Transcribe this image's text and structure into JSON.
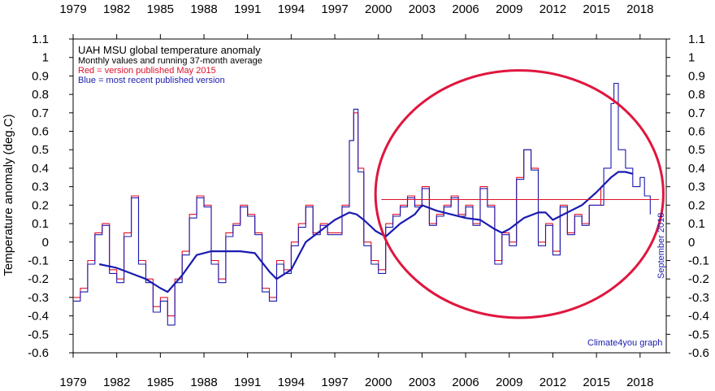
{
  "chart_data": {
    "type": "line",
    "title": "UAH MSU global temperature anomaly",
    "subtitle": "Monthly values and running 37-month average",
    "legend": [
      {
        "text": "Red = version published May 2015",
        "color": "#e0102a"
      },
      {
        "text": "Blue = most recent published version",
        "color": "#1b1bb0"
      }
    ],
    "ylabel": "Temperature anomaly (deg.C)",
    "right_note": "September 2018",
    "credit": "Climate4you graph",
    "xlim": [
      1979,
      2019.8
    ],
    "ylim": [
      -0.6,
      1.1
    ],
    "x_ticks": [
      "1979",
      "1982",
      "1985",
      "1988",
      "1991",
      "1994",
      "1997",
      "2000",
      "2003",
      "2006",
      "2009",
      "2012",
      "2015",
      "2018"
    ],
    "y_ticks": [
      "1.1",
      "1",
      "0.9",
      "0.8",
      "0.7",
      "0.6",
      "0.5",
      "0.4",
      "0.3",
      "0.2",
      "0.1",
      "0",
      "-0.1",
      "-0.2",
      "-0.3",
      "-0.4",
      "-0.5",
      "-0.6"
    ],
    "colors": {
      "monthly_blue": "#1b1bb0",
      "monthly_red": "#e0102a",
      "average": "#1b1bb0",
      "highlight_ellipse": "#e0163e",
      "reference_line": "#e0102a"
    },
    "reference_line": {
      "y": 0.23,
      "x_start": 2000.2,
      "x_end": 2019.3
    },
    "highlight_ellipse": {
      "x_center": 2009.7,
      "y_center": 0.26,
      "x_half_width": 9.9,
      "y_half_height": 0.67
    },
    "series": [
      {
        "name": "Red = version published May 2015",
        "color": "#e0102a",
        "x": [
          1979.0,
          1979.5,
          1980.0,
          1980.5,
          1981.0,
          1981.5,
          1982.0,
          1982.5,
          1983.0,
          1983.5,
          1984.0,
          1984.5,
          1985.0,
          1985.5,
          1986.0,
          1986.5,
          1987.0,
          1987.5,
          1988.0,
          1988.5,
          1989.0,
          1989.5,
          1990.0,
          1990.5,
          1991.0,
          1991.5,
          1992.0,
          1992.5,
          1993.0,
          1993.5,
          1994.0,
          1994.5,
          1995.0,
          1995.5,
          1996.0,
          1996.5,
          1997.0,
          1997.5,
          1998.0,
          1998.3,
          1998.6,
          1999.0,
          1999.5,
          2000.0,
          2000.5,
          2001.0,
          2001.5,
          2002.0,
          2002.5,
          2003.0,
          2003.5,
          2004.0,
          2004.5,
          2005.0,
          2005.5,
          2006.0,
          2006.5,
          2007.0,
          2007.5,
          2008.0,
          2008.5,
          2009.0,
          2009.5,
          2010.0,
          2010.5,
          2011.0,
          2011.5,
          2012.0,
          2012.5,
          2013.0,
          2013.5,
          2014.0,
          2014.5,
          2015.0,
          2015.3
        ],
        "values": [
          -0.3,
          -0.25,
          -0.1,
          0.05,
          0.1,
          -0.15,
          -0.2,
          0.05,
          0.25,
          -0.1,
          -0.2,
          -0.35,
          -0.3,
          -0.4,
          -0.2,
          -0.05,
          0.15,
          0.25,
          0.2,
          -0.1,
          -0.2,
          0.05,
          0.1,
          0.2,
          0.15,
          0.05,
          -0.25,
          -0.3,
          -0.1,
          -0.15,
          0.0,
          0.1,
          0.2,
          0.05,
          0.1,
          0.05,
          0.05,
          0.2,
          0.55,
          0.7,
          0.4,
          0.0,
          -0.1,
          -0.15,
          0.1,
          0.15,
          0.2,
          0.25,
          0.2,
          0.3,
          0.1,
          0.15,
          0.2,
          0.25,
          0.15,
          0.2,
          0.1,
          0.3,
          0.2,
          -0.1,
          0.05,
          0.0,
          0.35,
          0.5,
          0.4,
          0.0,
          0.1,
          -0.05,
          0.2,
          0.05,
          0.15,
          0.1,
          0.2,
          0.2,
          0.3
        ]
      },
      {
        "name": "Blue = most recent published version",
        "color": "#1b1bb0",
        "x": [
          1979.0,
          1979.5,
          1980.0,
          1980.5,
          1981.0,
          1981.5,
          1982.0,
          1982.5,
          1983.0,
          1983.5,
          1984.0,
          1984.5,
          1985.0,
          1985.5,
          1986.0,
          1986.5,
          1987.0,
          1987.5,
          1988.0,
          1988.5,
          1989.0,
          1989.5,
          1990.0,
          1990.5,
          1991.0,
          1991.5,
          1992.0,
          1992.5,
          1993.0,
          1993.5,
          1994.0,
          1994.5,
          1995.0,
          1995.5,
          1996.0,
          1996.5,
          1997.0,
          1997.5,
          1998.0,
          1998.3,
          1998.6,
          1999.0,
          1999.5,
          2000.0,
          2000.5,
          2001.0,
          2001.5,
          2002.0,
          2002.5,
          2003.0,
          2003.5,
          2004.0,
          2004.5,
          2005.0,
          2005.5,
          2006.0,
          2006.5,
          2007.0,
          2007.5,
          2008.0,
          2008.5,
          2009.0,
          2009.5,
          2010.0,
          2010.5,
          2011.0,
          2011.5,
          2012.0,
          2012.5,
          2013.0,
          2013.5,
          2014.0,
          2014.5,
          2015.0,
          2015.5,
          2016.0,
          2016.2,
          2016.5,
          2017.0,
          2017.5,
          2018.0,
          2018.3,
          2018.7
        ],
        "values": [
          -0.32,
          -0.27,
          -0.12,
          0.04,
          0.09,
          -0.17,
          -0.22,
          0.03,
          0.24,
          -0.12,
          -0.22,
          -0.38,
          -0.32,
          -0.45,
          -0.22,
          -0.07,
          0.13,
          0.24,
          0.19,
          -0.12,
          -0.22,
          0.03,
          0.09,
          0.19,
          0.14,
          0.04,
          -0.27,
          -0.32,
          -0.12,
          -0.17,
          -0.02,
          0.08,
          0.19,
          0.04,
          0.09,
          0.04,
          0.04,
          0.19,
          0.55,
          0.72,
          0.38,
          -0.02,
          -0.12,
          -0.17,
          0.08,
          0.14,
          0.19,
          0.24,
          0.19,
          0.29,
          0.09,
          0.14,
          0.19,
          0.24,
          0.14,
          0.19,
          0.09,
          0.29,
          0.19,
          -0.12,
          0.04,
          -0.02,
          0.34,
          0.5,
          0.39,
          -0.02,
          0.09,
          -0.07,
          0.19,
          0.04,
          0.14,
          0.09,
          0.2,
          0.2,
          0.4,
          0.75,
          0.86,
          0.5,
          0.4,
          0.3,
          0.35,
          0.25,
          0.15
        ]
      },
      {
        "name": "",
        "color": "#1b1bb0",
        "x": [
          1980.8,
          1982.0,
          1983.0,
          1984.0,
          1985.0,
          1985.5,
          1986.5,
          1987.5,
          1988.5,
          1989.5,
          1990.5,
          1991.5,
          1992.5,
          1993.0,
          1994.0,
          1995.0,
          1996.0,
          1997.0,
          1998.0,
          1998.5,
          1999.0,
          1999.8,
          2000.5,
          2001.5,
          2002.5,
          2003.0,
          2004.0,
          2005.0,
          2006.0,
          2007.0,
          2008.0,
          2008.5,
          2009.0,
          2009.5,
          2010.0,
          2011.0,
          2011.5,
          2012.0,
          2013.0,
          2014.0,
          2015.0,
          2016.0,
          2016.5,
          2017.0,
          2017.5
        ],
        "values": [
          -0.12,
          -0.14,
          -0.17,
          -0.2,
          -0.25,
          -0.27,
          -0.18,
          -0.07,
          -0.05,
          -0.05,
          -0.05,
          -0.06,
          -0.16,
          -0.2,
          -0.15,
          0.0,
          0.06,
          0.12,
          0.16,
          0.15,
          0.12,
          0.06,
          0.03,
          0.1,
          0.15,
          0.2,
          0.17,
          0.15,
          0.13,
          0.12,
          0.07,
          0.05,
          0.07,
          0.1,
          0.13,
          0.16,
          0.16,
          0.12,
          0.16,
          0.2,
          0.27,
          0.35,
          0.38,
          0.38,
          0.37
        ]
      }
    ]
  }
}
